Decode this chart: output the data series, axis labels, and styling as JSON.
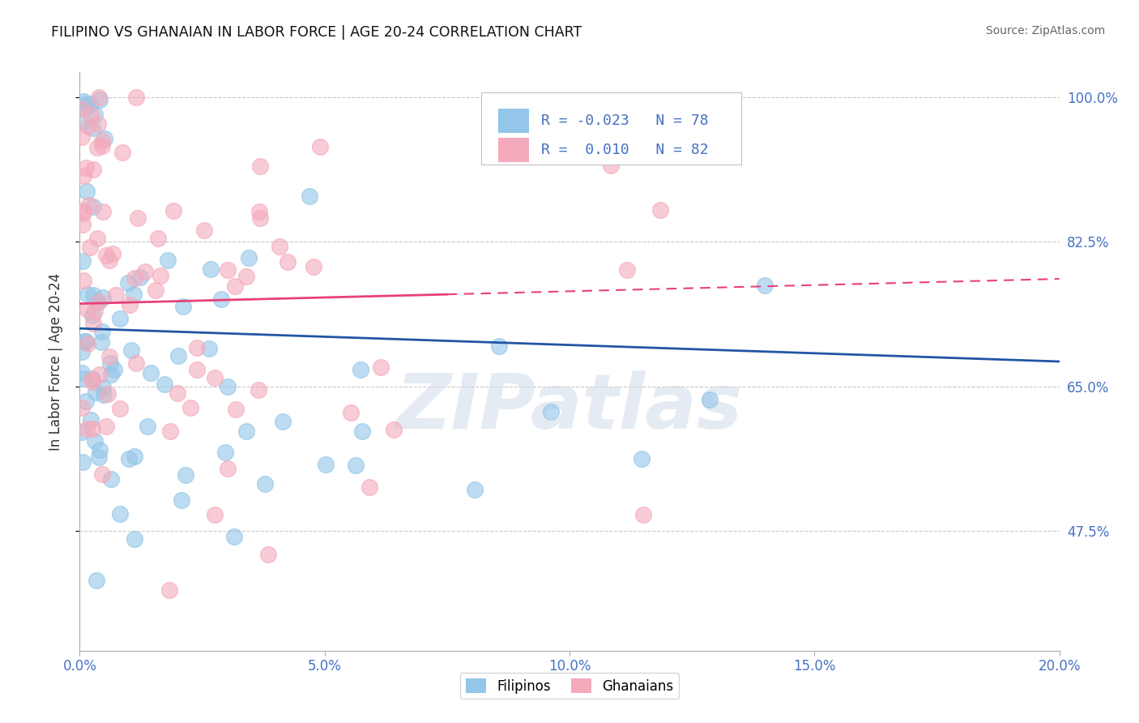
{
  "title": "FILIPINO VS GHANAIAN IN LABOR FORCE | AGE 20-24 CORRELATION CHART",
  "source": "Source: ZipAtlas.com",
  "ylabel": "In Labor Force | Age 20-24",
  "xlim": [
    0.0,
    20.0
  ],
  "ylim": [
    33.0,
    103.0
  ],
  "yticks": [
    47.5,
    65.0,
    82.5,
    100.0
  ],
  "xticks": [
    0.0,
    5.0,
    10.0,
    15.0,
    20.0
  ],
  "xtick_labels": [
    "0.0%",
    "5.0%",
    "10.0%",
    "15.0%",
    "20.0%"
  ],
  "ytick_labels": [
    "47.5%",
    "65.0%",
    "82.5%",
    "100.0%"
  ],
  "blue_color": "#93C6E8",
  "pink_color": "#F4AABB",
  "trend_blue": "#2255A4",
  "trend_pink": "#E8407A",
  "legend_r_blue": "-0.023",
  "legend_n_blue": "78",
  "legend_r_pink": "0.010",
  "legend_n_pink": "82",
  "watermark": "ZIPatlas",
  "label_color": "#4472c4"
}
